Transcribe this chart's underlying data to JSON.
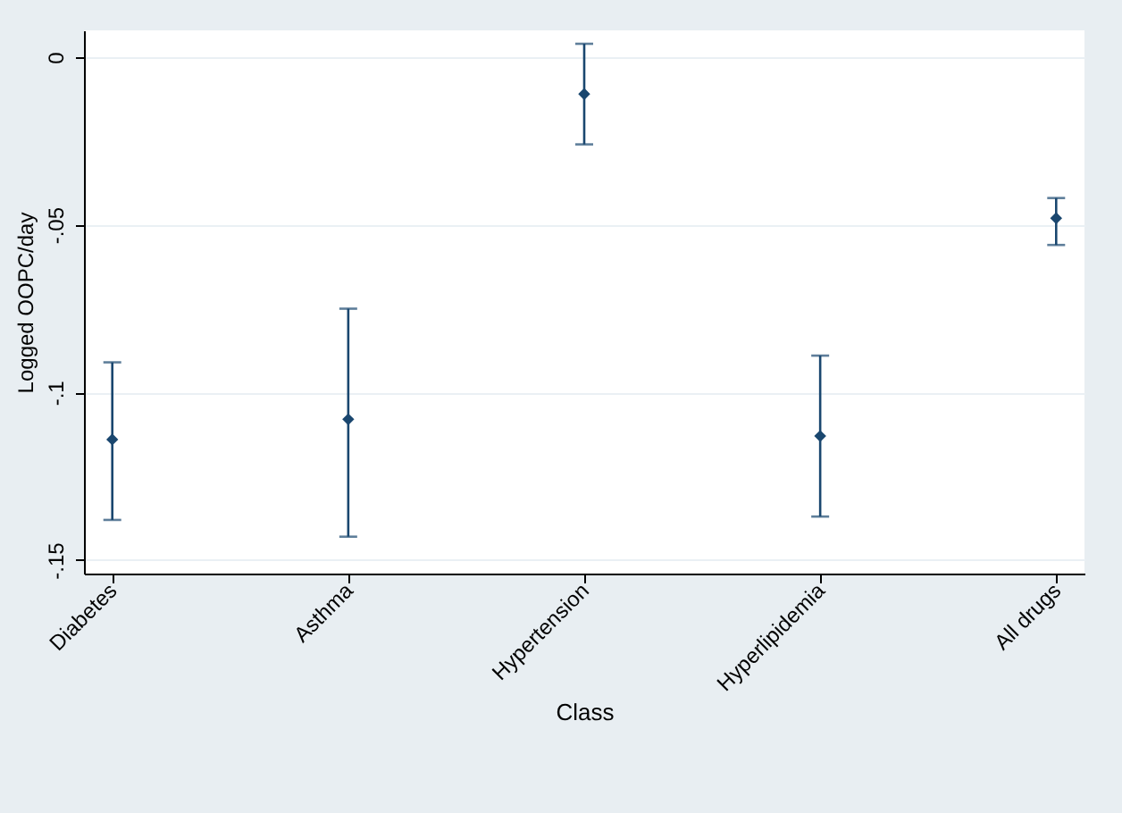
{
  "chart_data": {
    "type": "scatter",
    "xlabel": "Class",
    "ylabel": "Logged OOPC/day",
    "categories": [
      "Diabetes",
      "Asthma",
      "Hypertension",
      "Hyperlipidemia",
      "All drugs"
    ],
    "series": [
      {
        "color": "#1a476f",
        "values": [
          -0.114,
          -0.108,
          -0.011,
          -0.113,
          -0.048
        ],
        "errors": [
          [
            -0.138,
            -0.091
          ],
          [
            -0.143,
            -0.075
          ],
          [
            -0.026,
            0.004
          ],
          [
            -0.137,
            -0.089
          ],
          [
            -0.056,
            -0.042
          ]
        ]
      }
    ],
    "ylim": [
      -0.154,
      0.008
    ],
    "yticks": [
      {
        "value": 0,
        "label": "0"
      },
      {
        "value": -0.05,
        "label": "-.05"
      },
      {
        "value": -0.1,
        "label": "-.1"
      },
      {
        "value": -0.15,
        "label": "-.15"
      }
    ],
    "grid": "y",
    "marker": "diamond"
  }
}
